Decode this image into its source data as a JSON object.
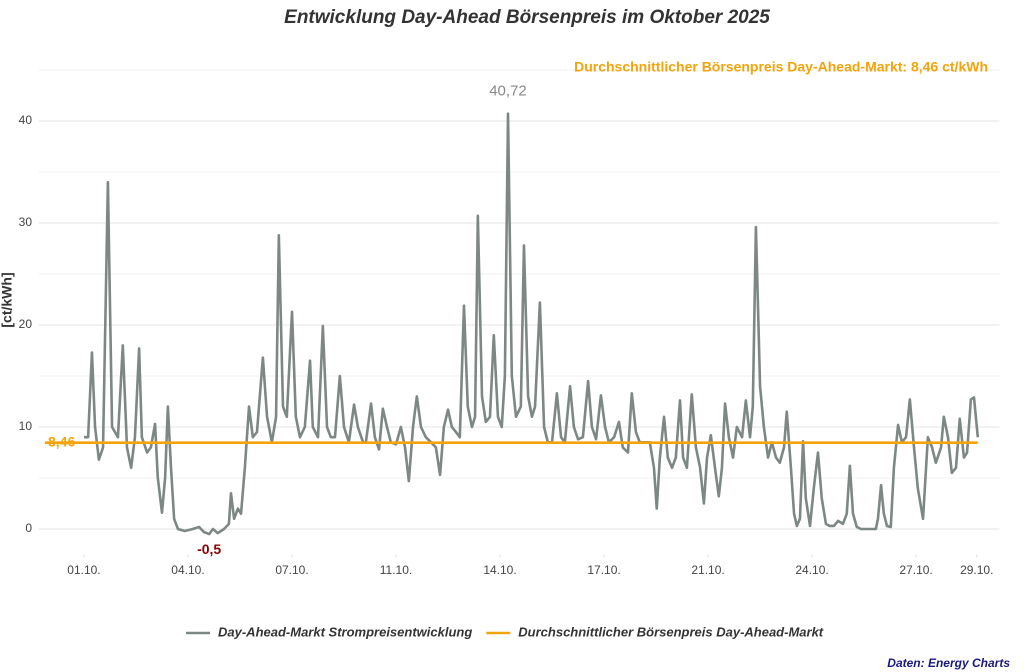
{
  "chart_data": {
    "type": "line",
    "title": "Entwicklung Day-Ahead Börsenpreis im Oktober 2025",
    "y_label": "[ct/kWh]",
    "xlim": [
      -0.3,
      27.4
    ],
    "ylim": [
      -2.5,
      46
    ],
    "yticks": [
      0,
      10,
      20,
      30,
      40
    ],
    "minor_yticks": [
      5,
      15,
      25,
      35,
      45
    ],
    "xticks": [
      {
        "value": 1,
        "label": "01.10."
      },
      {
        "value": 4,
        "label": "04.10."
      },
      {
        "value": 7,
        "label": "07.10."
      },
      {
        "value": 10,
        "label": "11.10."
      },
      {
        "value": 13,
        "label": "14.10."
      },
      {
        "value": 16,
        "label": "17.10."
      },
      {
        "value": 19,
        "label": "21.10."
      },
      {
        "value": 22,
        "label": "24.10."
      },
      {
        "value": 25,
        "label": "27.10."
      },
      {
        "value": 26.75,
        "label": "29.10."
      }
    ],
    "grid": true,
    "series": [
      {
        "name": "Day-Ahead-Markt Strompreisentwicklung",
        "color": "#7d8885",
        "x": [
          1.0,
          1.12,
          1.23,
          1.32,
          1.43,
          1.55,
          1.69,
          1.81,
          1.98,
          2.12,
          2.24,
          2.36,
          2.47,
          2.59,
          2.67,
          2.82,
          2.93,
          3.05,
          3.13,
          3.25,
          3.34,
          3.42,
          3.51,
          3.6,
          3.71,
          3.91,
          4.14,
          4.32,
          4.46,
          4.61,
          4.72,
          4.86,
          5.04,
          5.18,
          5.24,
          5.33,
          5.44,
          5.53,
          5.64,
          5.76,
          5.87,
          5.99,
          6.16,
          6.28,
          6.42,
          6.54,
          6.62,
          6.74,
          6.85,
          7.0,
          7.11,
          7.23,
          7.37,
          7.52,
          7.6,
          7.75,
          7.89,
          8.01,
          8.12,
          8.24,
          8.38,
          8.5,
          8.64,
          8.79,
          8.9,
          9.05,
          9.13,
          9.28,
          9.39,
          9.51,
          9.62,
          9.74,
          9.85,
          10.0,
          10.14,
          10.26,
          10.37,
          10.49,
          10.6,
          10.72,
          10.86,
          11.01,
          11.15,
          11.27,
          11.38,
          11.5,
          11.61,
          11.73,
          11.84,
          11.96,
          12.07,
          12.19,
          12.28,
          12.36,
          12.48,
          12.59,
          12.71,
          12.82,
          12.94,
          13.05,
          13.14,
          13.23,
          13.34,
          13.46,
          13.6,
          13.69,
          13.81,
          13.92,
          14.01,
          14.15,
          14.27,
          14.38,
          14.5,
          14.64,
          14.76,
          14.87,
          15.02,
          15.13,
          15.25,
          15.39,
          15.54,
          15.65,
          15.77,
          15.91,
          16.03,
          16.14,
          16.29,
          16.43,
          16.54,
          16.69,
          16.8,
          16.92,
          17.03,
          17.18,
          17.32,
          17.44,
          17.52,
          17.61,
          17.73,
          17.84,
          17.96,
          18.07,
          18.19,
          18.28,
          18.39,
          18.53,
          18.65,
          18.77,
          18.88,
          18.97,
          19.08,
          19.2,
          19.31,
          19.4,
          19.49,
          19.6,
          19.72,
          19.83,
          19.98,
          20.09,
          20.21,
          20.29,
          20.38,
          20.5,
          20.61,
          20.73,
          20.84,
          20.96,
          21.07,
          21.19,
          21.27,
          21.39,
          21.48,
          21.56,
          21.65,
          21.74,
          21.82,
          21.94,
          22.05,
          22.17,
          22.28,
          22.4,
          22.51,
          22.63,
          22.75,
          22.89,
          23.0,
          23.09,
          23.18,
          23.29,
          23.41,
          23.55,
          23.73,
          23.84,
          23.9,
          23.99,
          24.07,
          24.16,
          24.27,
          24.36,
          24.48,
          24.59,
          24.71,
          24.82,
          24.94,
          25.05,
          25.2,
          25.34,
          25.46,
          25.57,
          25.72,
          25.8,
          25.92,
          26.03,
          26.15,
          26.26,
          26.38,
          26.47,
          26.58,
          26.67,
          26.78
        ],
        "values": [
          9,
          9,
          17.3,
          10,
          6.8,
          8,
          34,
          10,
          9,
          18,
          8,
          6,
          9,
          17.7,
          9,
          7.5,
          8,
          10.3,
          5,
          1.6,
          5,
          12,
          6,
          1,
          0,
          -0.2,
          0,
          0.2,
          -0.3,
          -0.5,
          0,
          -0.4,
          0,
          0.5,
          3.5,
          1,
          2,
          1.5,
          6,
          12,
          9,
          9.5,
          16.8,
          11,
          8.5,
          11,
          28.8,
          12,
          11,
          21.3,
          11,
          9,
          10,
          16.5,
          10,
          9,
          19.9,
          10,
          9,
          9,
          15,
          10,
          8.5,
          12.2,
          10,
          8.5,
          8.5,
          12.3,
          9,
          7.8,
          11.8,
          10,
          8.5,
          8.3,
          10,
          8,
          4.7,
          10,
          13,
          10,
          9,
          8.5,
          8,
          5.3,
          10,
          11.7,
          10,
          9.5,
          9,
          21.9,
          12,
          10,
          11,
          30.7,
          13,
          10.5,
          11,
          19,
          11,
          10,
          15,
          40.72,
          15,
          11,
          12,
          27.8,
          13,
          11,
          12,
          22.2,
          10,
          8.5,
          8.5,
          13.3,
          9,
          8.5,
          14,
          10,
          8.8,
          9,
          14.5,
          10,
          8.8,
          13.1,
          10,
          8.5,
          9,
          10.5,
          8,
          7.5,
          13.3,
          9.5,
          8.5,
          8.5,
          8.5,
          6,
          2,
          7,
          11,
          7,
          6,
          7,
          12.6,
          7,
          6,
          13.2,
          8,
          6,
          2.5,
          7,
          9.2,
          6,
          3.2,
          6,
          12.3,
          9,
          7,
          10,
          9,
          12.6,
          9,
          12,
          29.6,
          14,
          10,
          7,
          8.5,
          7,
          6.5,
          8,
          11.5,
          6,
          1.5,
          0.3,
          1,
          8.6,
          3,
          0.3,
          4,
          7.5,
          3,
          0.5,
          0.3,
          0.3,
          0.8,
          0.5,
          1.5,
          6.2,
          1.5,
          0.2,
          0,
          0,
          0,
          0,
          1,
          4.3,
          1.5,
          0.3,
          0.2,
          6,
          10.2,
          8.5,
          9,
          12.7,
          8,
          4,
          1,
          9,
          8,
          6.5,
          8,
          11,
          9,
          5.5,
          6,
          10.8,
          7,
          7.5,
          12.7,
          12.9,
          9
        ]
      }
    ],
    "average": {
      "name": "Durchschnittlicher Börsenpreis Day-Ahead-Markt",
      "value": 8.46,
      "label": "8,46",
      "text": "Durchschnittlicher Börsenpreis Day-Ahead-Markt: 8,46 ct/kWh",
      "color": "#f5a30a"
    },
    "annotations": [
      {
        "text": "40,72",
        "x": 13.23,
        "value": 40.72,
        "color": "#888888"
      },
      {
        "text": "-0,5",
        "x": 4.61,
        "value": -0.5,
        "color": "#8b0000"
      }
    ],
    "source": "Daten: Energy Charts"
  }
}
